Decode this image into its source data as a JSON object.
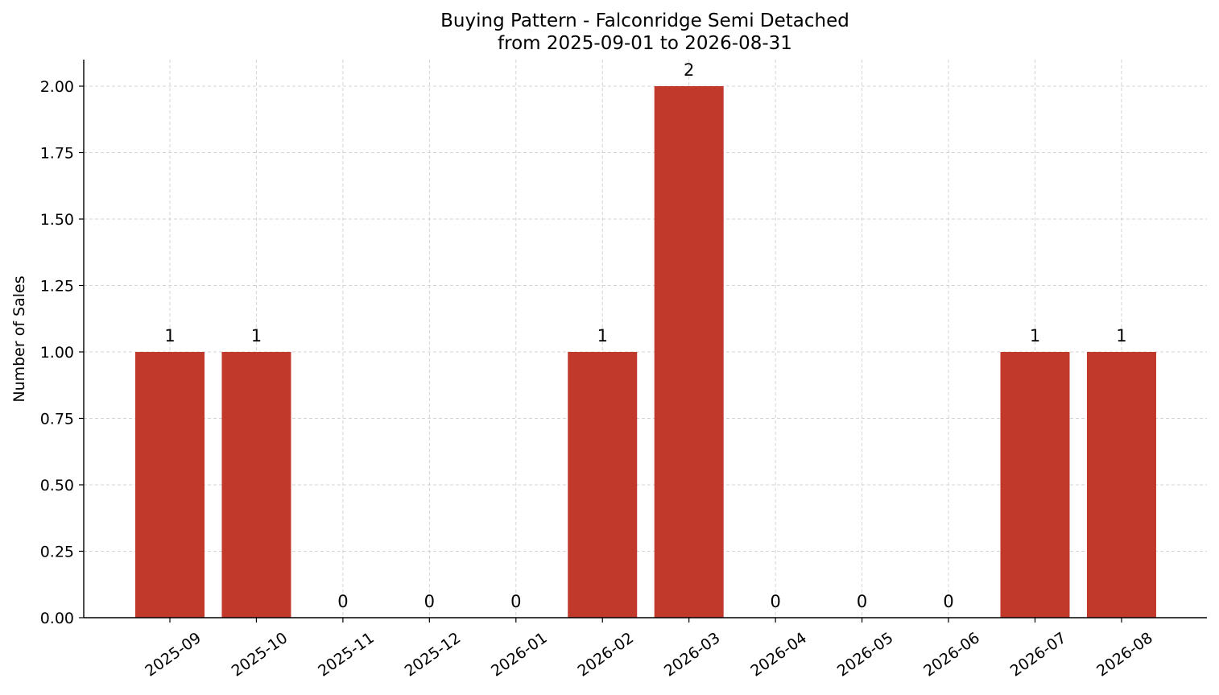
{
  "chart_data": {
    "type": "bar",
    "title": "Buying Pattern - Falconridge Semi Detached",
    "subtitle": "from 2025-09-01 to 2026-08-31",
    "xlabel": "",
    "ylabel": "Number of Sales",
    "categories": [
      "2025-09",
      "2025-10",
      "2025-11",
      "2025-12",
      "2026-01",
      "2026-02",
      "2026-03",
      "2026-04",
      "2026-05",
      "2026-06",
      "2026-07",
      "2026-08"
    ],
    "values": [
      1,
      1,
      0,
      0,
      0,
      1,
      2,
      0,
      0,
      0,
      1,
      1
    ],
    "data_labels": [
      "1",
      "1",
      "0",
      "0",
      "0",
      "1",
      "2",
      "0",
      "0",
      "0",
      "1",
      "1"
    ],
    "ylim": [
      0,
      2.1
    ],
    "yticks": [
      0,
      0.25,
      0.5,
      0.75,
      1.0,
      1.25,
      1.5,
      1.75,
      2.0
    ],
    "ytick_labels": [
      "0.00",
      "0.25",
      "0.50",
      "0.75",
      "1.00",
      "1.25",
      "1.50",
      "1.75",
      "2.00"
    ],
    "grid": true,
    "bar_color": "#c0392b",
    "legend": "none"
  }
}
